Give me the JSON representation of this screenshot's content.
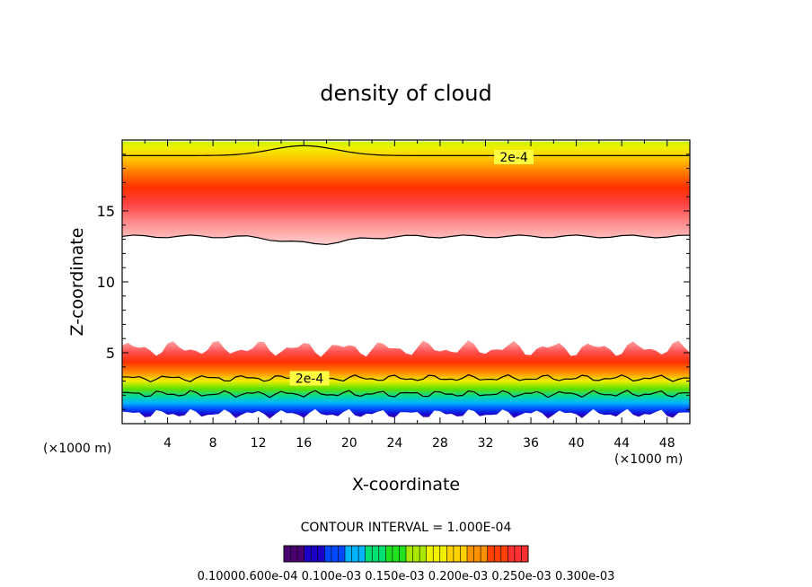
{
  "chart_data": {
    "type": "heatmap",
    "title": "density of cloud",
    "xlabel": "X-coordinate",
    "ylabel": "Z-coordinate",
    "x_unit": "(×1000 m)",
    "x_unit_right": "(×1000 m)",
    "xlim": [
      0,
      50
    ],
    "ylim": [
      0,
      20
    ],
    "xticks": [
      4,
      8,
      12,
      16,
      20,
      24,
      28,
      32,
      36,
      40,
      44,
      48
    ],
    "yticks": [
      5,
      10,
      15
    ],
    "contour_interval": "CONTOUR INTERVAL = 1.000E-04",
    "contour_labels": [
      {
        "text": "2e-4",
        "x": 34.5,
        "z": 18.8
      },
      {
        "text": "2e-4",
        "x": 16.5,
        "z": 3.2
      }
    ],
    "colorbar": {
      "min_label": "0.1000",
      "labels_text": "0.10000.600e-04 0.100e-03 0.150e-03 0.200e-03 0.250e-03 0.300e-03",
      "colors": [
        "#4a0070",
        "#1b00c8",
        "#0048ff",
        "#00b4ff",
        "#00e070",
        "#20e020",
        "#a8e800",
        "#f0f000",
        "#ffd000",
        "#ff9000",
        "#ff4000",
        "#ff3030"
      ]
    },
    "bands": {
      "upper": {
        "top_z": 19.9,
        "bottom_z": 13.2,
        "max_value": 0.0003,
        "peak_z": 15.2
      },
      "lower": {
        "top_z": 5.3,
        "bottom_z": 0.7,
        "max_value": 0.0003,
        "peak_z": 4.5
      }
    },
    "colors": {
      "frame": "#000000",
      "contour": "#000000"
    }
  }
}
